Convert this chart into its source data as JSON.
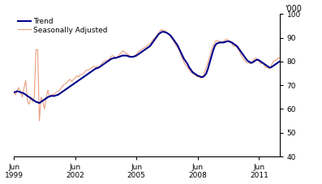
{
  "trend_color": "#00008B",
  "seasonal_color": "#E8A080",
  "background_color": "#FFFFFF",
  "ylabel_right": "'000",
  "ylim": [
    40,
    100
  ],
  "yticks": [
    40,
    50,
    60,
    70,
    80,
    90,
    100
  ],
  "legend_entries": [
    "Trend",
    "Seasonally Adjusted"
  ],
  "trend_linewidth": 1.5,
  "seasonal_linewidth": 0.8,
  "n_months": 157,
  "trend_data": [
    67.0,
    67.2,
    67.5,
    67.3,
    67.0,
    66.8,
    66.5,
    66.0,
    65.5,
    65.0,
    64.5,
    64.0,
    63.5,
    63.0,
    62.8,
    62.5,
    63.0,
    63.5,
    64.0,
    64.5,
    65.0,
    65.3,
    65.5,
    65.5,
    65.5,
    65.8,
    66.0,
    66.5,
    67.0,
    67.5,
    68.0,
    68.5,
    69.0,
    69.5,
    70.0,
    70.5,
    71.0,
    71.5,
    72.0,
    72.5,
    73.0,
    73.5,
    74.0,
    74.5,
    75.0,
    75.5,
    76.0,
    76.5,
    77.0,
    77.2,
    77.5,
    78.0,
    78.5,
    79.0,
    79.5,
    80.0,
    80.5,
    81.0,
    81.3,
    81.5,
    81.5,
    81.8,
    82.0,
    82.3,
    82.5,
    82.5,
    82.5,
    82.3,
    82.0,
    82.0,
    82.0,
    82.2,
    82.5,
    83.0,
    83.5,
    84.0,
    84.5,
    85.0,
    85.5,
    86.0,
    86.5,
    87.5,
    88.5,
    89.5,
    90.5,
    91.5,
    92.0,
    92.5,
    92.5,
    92.3,
    92.0,
    91.5,
    91.0,
    90.0,
    89.0,
    88.0,
    87.0,
    85.5,
    84.0,
    82.5,
    81.0,
    80.0,
    79.0,
    77.5,
    76.5,
    75.5,
    75.0,
    74.5,
    74.0,
    73.8,
    73.5,
    73.5,
    74.0,
    75.0,
    77.0,
    79.5,
    82.0,
    84.5,
    86.5,
    87.5,
    87.8,
    88.0,
    88.0,
    88.0,
    88.2,
    88.5,
    88.5,
    88.3,
    88.0,
    87.5,
    87.0,
    86.5,
    85.5,
    84.5,
    83.5,
    82.5,
    81.5,
    80.5,
    80.0,
    79.5,
    79.5,
    80.0,
    80.5,
    80.8,
    80.5,
    80.0,
    79.5,
    79.0,
    78.5,
    78.0,
    77.5,
    77.5,
    78.0,
    78.5,
    79.0,
    79.5,
    80.0
  ],
  "seasonal_data": [
    67.0,
    66.0,
    68.0,
    69.0,
    67.0,
    65.0,
    69.0,
    72.0,
    63.0,
    62.0,
    65.0,
    63.0,
    65.0,
    85.0,
    85.0,
    55.0,
    65.0,
    63.0,
    60.0,
    65.0,
    68.0,
    65.0,
    66.0,
    66.0,
    66.5,
    67.0,
    67.5,
    68.0,
    69.0,
    70.0,
    70.5,
    71.0,
    72.0,
    72.5,
    71.5,
    72.5,
    73.0,
    74.0,
    73.5,
    74.5,
    74.5,
    75.0,
    76.0,
    76.5,
    76.5,
    77.0,
    77.5,
    78.0,
    77.5,
    78.0,
    77.5,
    78.5,
    79.5,
    80.0,
    80.5,
    80.5,
    81.0,
    82.0,
    82.5,
    82.0,
    81.5,
    82.0,
    83.0,
    83.5,
    84.5,
    84.0,
    83.5,
    83.0,
    82.5,
    82.0,
    82.0,
    82.5,
    83.0,
    84.0,
    84.5,
    85.0,
    85.5,
    86.0,
    86.5,
    87.0,
    87.5,
    88.5,
    89.5,
    90.0,
    91.0,
    92.0,
    93.0,
    93.5,
    93.0,
    93.0,
    92.0,
    91.5,
    90.5,
    89.5,
    88.5,
    87.0,
    86.0,
    85.0,
    83.0,
    81.0,
    79.5,
    78.5,
    77.5,
    76.5,
    75.5,
    75.0,
    74.5,
    74.0,
    73.5,
    73.5,
    73.0,
    73.5,
    75.5,
    77.5,
    79.5,
    82.0,
    84.5,
    86.5,
    88.0,
    89.0,
    88.5,
    88.5,
    88.0,
    88.5,
    89.0,
    89.5,
    89.0,
    88.5,
    87.5,
    86.5,
    86.5,
    86.0,
    85.0,
    83.5,
    82.0,
    81.0,
    80.0,
    79.5,
    79.5,
    79.0,
    80.0,
    81.0,
    81.5,
    81.0,
    80.0,
    79.0,
    79.5,
    78.5,
    77.5,
    77.5,
    77.0,
    78.0,
    79.5,
    80.5,
    80.5,
    81.5,
    81.5
  ]
}
